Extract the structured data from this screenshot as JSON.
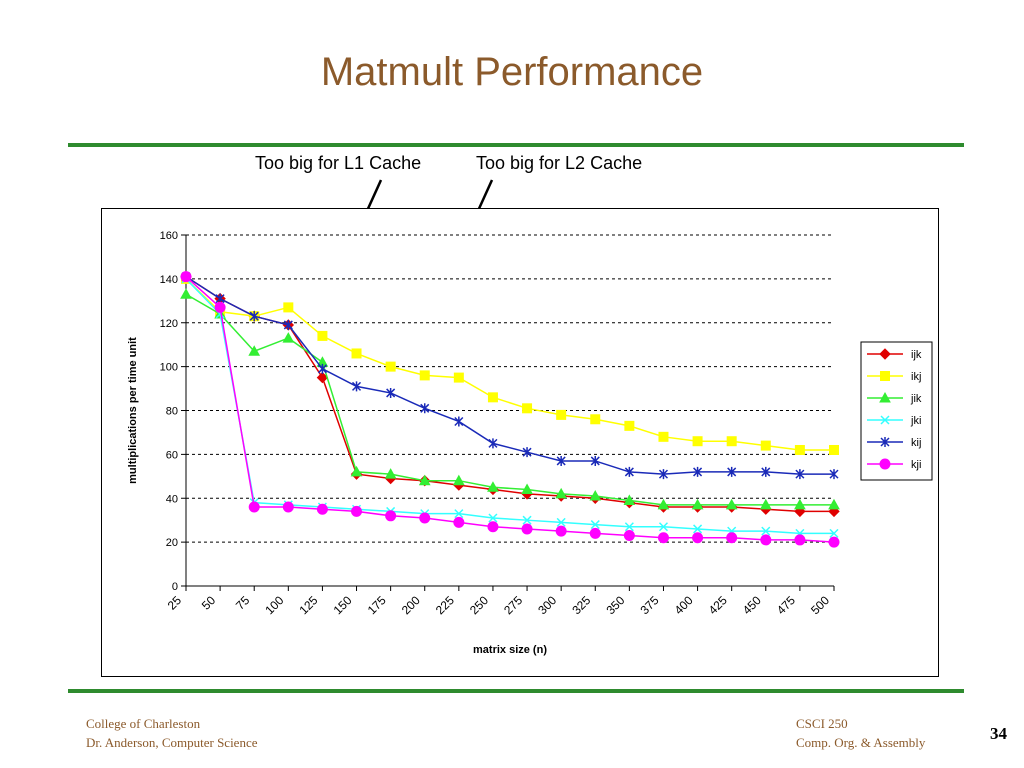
{
  "slide": {
    "title": "Matmult Performance",
    "annotation_l1": "Too big for L1 Cache",
    "annotation_l2": "Too big for L2 Cache",
    "footer_left_line1": "College of Charleston",
    "footer_left_line2": "Dr. Anderson, Computer Science",
    "footer_right_line1": "CSCI 250",
    "footer_right_line2": "Comp. Org. & Assembly",
    "page_number": "34"
  },
  "colors": {
    "title": "#8b5a2b",
    "rule": "#2e8b2e",
    "ijk": "#e00000",
    "ikj": "#ffff00",
    "jik": "#33ee33",
    "jki": "#33ffff",
    "kij": "#1a2ab8",
    "kji": "#ff00ff"
  },
  "chart_data": {
    "type": "line",
    "title": "",
    "xlabel": "matrix size (n)",
    "ylabel": "multiplications per time unit",
    "x": [
      25,
      50,
      75,
      100,
      125,
      150,
      175,
      200,
      225,
      250,
      275,
      300,
      325,
      350,
      375,
      400,
      425,
      450,
      475,
      500
    ],
    "ylim": [
      0,
      160
    ],
    "yticks": [
      0,
      20,
      40,
      60,
      80,
      100,
      120,
      140,
      160
    ],
    "grid": true,
    "legend": "right",
    "series": [
      {
        "name": "ijk",
        "marker": "diamond",
        "values": [
          141,
          131,
          123,
          119,
          95,
          51,
          49,
          48,
          46,
          44,
          42,
          41,
          40,
          38,
          36,
          36,
          36,
          35,
          34,
          34
        ]
      },
      {
        "name": "ikj",
        "marker": "square",
        "values": [
          140,
          125,
          123,
          127,
          114,
          106,
          100,
          96,
          95,
          86,
          81,
          78,
          76,
          73,
          68,
          66,
          66,
          64,
          62,
          62
        ]
      },
      {
        "name": "jik",
        "marker": "triangle",
        "values": [
          133,
          124,
          107,
          113,
          102,
          52,
          51,
          48,
          48,
          45,
          44,
          42,
          41,
          39,
          37,
          37,
          37,
          37,
          37,
          37
        ]
      },
      {
        "name": "jki",
        "marker": "x",
        "values": [
          140,
          124,
          38,
          37,
          36,
          35,
          34,
          33,
          33,
          31,
          30,
          29,
          28,
          27,
          27,
          26,
          25,
          25,
          24,
          24
        ]
      },
      {
        "name": "kij",
        "marker": "star",
        "values": [
          141,
          131,
          123,
          119,
          99,
          91,
          88,
          81,
          75,
          65,
          61,
          57,
          57,
          52,
          51,
          52,
          52,
          52,
          51,
          51
        ]
      },
      {
        "name": "kji",
        "marker": "circle",
        "values": [
          141,
          127,
          36,
          36,
          35,
          34,
          32,
          31,
          29,
          27,
          26,
          25,
          24,
          23,
          22,
          22,
          22,
          21,
          21,
          20
        ]
      }
    ]
  }
}
